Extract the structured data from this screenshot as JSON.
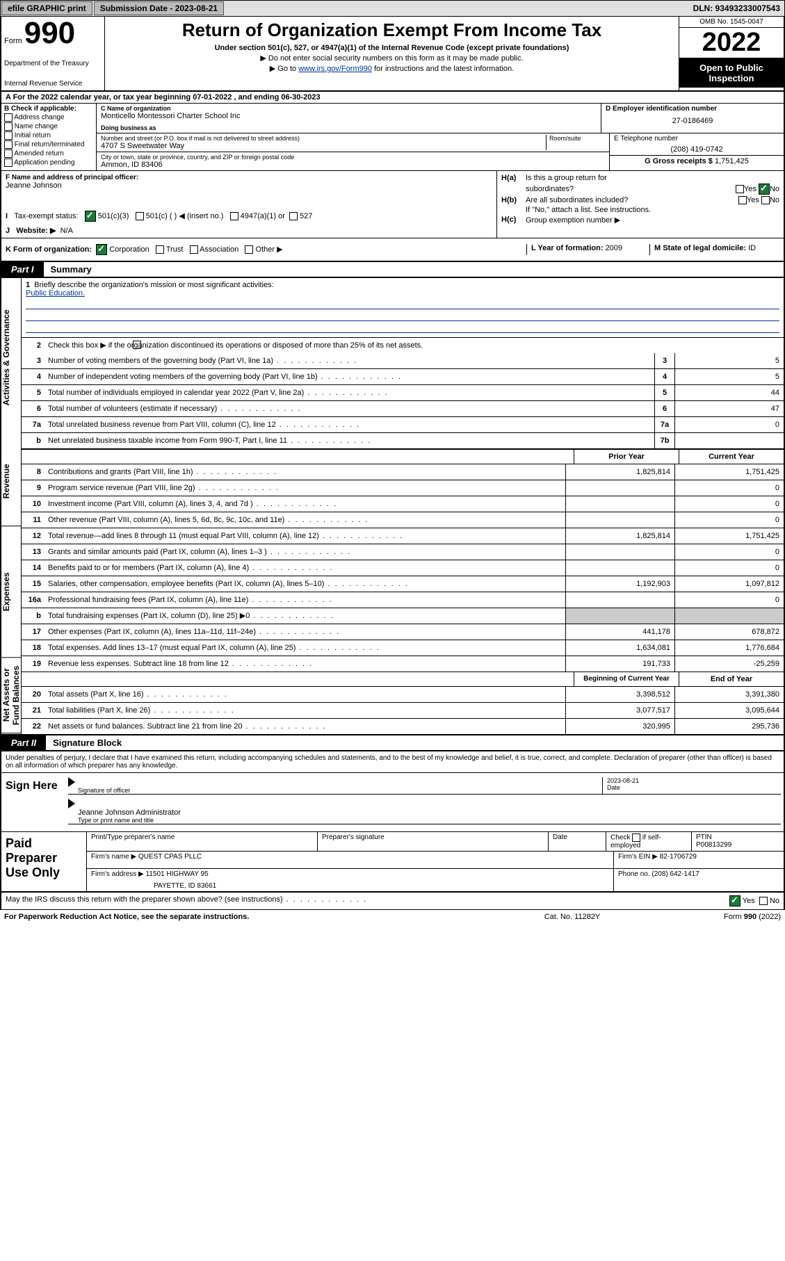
{
  "topbar": {
    "efile": "efile GRAPHIC print",
    "sub_lbl": "Submission Date - 2023-08-21",
    "dln": "DLN: 93493233007543"
  },
  "header": {
    "form_lbl": "Form",
    "form_no": "990",
    "dept": "Department of the Treasury",
    "irs": "Internal Revenue Service",
    "title": "Return of Organization Exempt From Income Tax",
    "sub1": "Under section 501(c), 527, or 4947(a)(1) of the Internal Revenue Code (except private foundations)",
    "sub2": "▶ Do not enter social security numbers on this form as it may be made public.",
    "sub3a": "▶ Go to ",
    "sub3link": "www.irs.gov/Form990",
    "sub3b": " for instructions and the latest information.",
    "omb": "OMB No. 1545-0047",
    "year": "2022",
    "openpub": "Open to Public Inspection"
  },
  "a_row": "A For the 2022 calendar year, or tax year beginning 07-01-2022    , and ending 06-30-2023",
  "b": {
    "hdr": "B Check if applicable:",
    "items": [
      "Address change",
      "Name change",
      "Initial return",
      "Final return/terminated",
      "Amended return",
      "Application pending"
    ]
  },
  "c": {
    "name_lbl": "C Name of organization",
    "name": "Monticello Montessori Charter School Inc",
    "dba_lbl": "Doing business as",
    "street_lbl": "Number and street (or P.O. box if mail is not delivered to street address)",
    "street": "4707 S Sweetwater Way",
    "room_lbl": "Room/suite",
    "city_lbl": "City or town, state or province, country, and ZIP or foreign postal code",
    "city": "Ammon, ID  83406"
  },
  "d": {
    "lbl": "D Employer identification number",
    "val": "27-0186469"
  },
  "e": {
    "tel_lbl": "E Telephone number",
    "tel": "(208) 419-0742",
    "gross_lbl": "G Gross receipts $ ",
    "gross": "1,751,425"
  },
  "f": {
    "lbl": "F  Name and address of principal officer:",
    "val": "Jeanne Johnson"
  },
  "h": {
    "a1": "Is this a group return for",
    "a2": "subordinates?",
    "b1": "Are all subordinates included?",
    "b2": "If \"No,\" attach a list. See instructions.",
    "c": "Group exemption number ▶"
  },
  "i": {
    "lbl": "Tax-exempt status:",
    "o1": "501(c)(3)",
    "o2": "501(c) (  ) ◀ (insert no.)",
    "o3": "4947(a)(1) or",
    "o4": "527"
  },
  "j": {
    "lbl": "Website: ▶",
    "val": "N/A"
  },
  "k": {
    "lbl": "K Form of organization:",
    "o1": "Corporation",
    "o2": "Trust",
    "o3": "Association",
    "o4": "Other ▶"
  },
  "l": {
    "lbl": "L Year of formation: ",
    "val": "2009"
  },
  "m": {
    "lbl": "M State of legal domicile: ",
    "val": "ID"
  },
  "part1": {
    "tab": "Part I",
    "title": "Summary"
  },
  "side": {
    "ag": "Activities & Governance",
    "rev": "Revenue",
    "exp": "Expenses",
    "na": "Net Assets or Fund Balances"
  },
  "mission": {
    "lbl": "Briefly describe the organization's mission or most significant activities:",
    "txt": "Public Education."
  },
  "line2": "Check this box ▶        if the organization discontinued its operations or disposed of more than 25% of its net assets.",
  "lines_single": [
    {
      "no": "3",
      "txt": "Number of voting members of the governing body (Part VI, line 1a)",
      "box": "3",
      "val": "5"
    },
    {
      "no": "4",
      "txt": "Number of independent voting members of the governing body (Part VI, line 1b)",
      "box": "4",
      "val": "5"
    },
    {
      "no": "5",
      "txt": "Total number of individuals employed in calendar year 2022 (Part V, line 2a)",
      "box": "5",
      "val": "44"
    },
    {
      "no": "6",
      "txt": "Total number of volunteers (estimate if necessary)",
      "box": "6",
      "val": "47"
    },
    {
      "no": "7a",
      "txt": "Total unrelated business revenue from Part VIII, column (C), line 12",
      "box": "7a",
      "val": "0"
    },
    {
      "no": "b",
      "txt": "Net unrelated business taxable income from Form 990-T, Part I, line 11",
      "box": "7b",
      "val": ""
    }
  ],
  "col_hdr": {
    "prior": "Prior Year",
    "curr": "Current Year"
  },
  "rev_lines": [
    {
      "no": "8",
      "txt": "Contributions and grants (Part VIII, line 1h)",
      "p": "1,825,814",
      "c": "1,751,425"
    },
    {
      "no": "9",
      "txt": "Program service revenue (Part VIII, line 2g)",
      "p": "",
      "c": "0"
    },
    {
      "no": "10",
      "txt": "Investment income (Part VIII, column (A), lines 3, 4, and 7d )",
      "p": "",
      "c": "0"
    },
    {
      "no": "11",
      "txt": "Other revenue (Part VIII, column (A), lines 5, 6d, 8c, 9c, 10c, and 11e)",
      "p": "",
      "c": "0"
    },
    {
      "no": "12",
      "txt": "Total revenue—add lines 8 through 11 (must equal Part VIII, column (A), line 12)",
      "p": "1,825,814",
      "c": "1,751,425"
    }
  ],
  "exp_lines": [
    {
      "no": "13",
      "txt": "Grants and similar amounts paid (Part IX, column (A), lines 1–3 )",
      "p": "",
      "c": "0"
    },
    {
      "no": "14",
      "txt": "Benefits paid to or for members (Part IX, column (A), line 4)",
      "p": "",
      "c": "0"
    },
    {
      "no": "15",
      "txt": "Salaries, other compensation, employee benefits (Part IX, column (A), lines 5–10)",
      "p": "1,192,903",
      "c": "1,097,812"
    },
    {
      "no": "16a",
      "txt": "Professional fundraising fees (Part IX, column (A), line 11e)",
      "p": "",
      "c": "0"
    },
    {
      "no": "b",
      "txt": "Total fundraising expenses (Part IX, column (D), line 25) ▶0",
      "p": "shade",
      "c": "shade"
    },
    {
      "no": "17",
      "txt": "Other expenses (Part IX, column (A), lines 11a–11d, 11f–24e)",
      "p": "441,178",
      "c": "678,872"
    },
    {
      "no": "18",
      "txt": "Total expenses. Add lines 13–17 (must equal Part IX, column (A), line 25)",
      "p": "1,634,081",
      "c": "1,776,684"
    },
    {
      "no": "19",
      "txt": "Revenue less expenses. Subtract line 18 from line 12",
      "p": "191,733",
      "c": "-25,259"
    }
  ],
  "na_hdr": {
    "beg": "Beginning of Current Year",
    "end": "End of Year"
  },
  "na_lines": [
    {
      "no": "20",
      "txt": "Total assets (Part X, line 16)",
      "p": "3,398,512",
      "c": "3,391,380"
    },
    {
      "no": "21",
      "txt": "Total liabilities (Part X, line 26)",
      "p": "3,077,517",
      "c": "3,095,644"
    },
    {
      "no": "22",
      "txt": "Net assets or fund balances. Subtract line 21 from line 20",
      "p": "320,995",
      "c": "295,736"
    }
  ],
  "part2": {
    "tab": "Part II",
    "title": "Signature Block"
  },
  "sig": {
    "decl": "Under penalties of perjury, I declare that I have examined this return, including accompanying schedules and statements, and to the best of my knowledge and belief, it is true, correct, and complete. Declaration of preparer (other than officer) is based on all information of which preparer has any knowledge.",
    "sign_here": "Sign Here",
    "sig_lbl": "Signature of officer",
    "date_lbl": "Date",
    "date": "2023-08-21",
    "name": "Jeanne Johnson Administrator",
    "name_lbl": "Type or print name and title"
  },
  "paid": {
    "lbl": "Paid Preparer Use Only",
    "h1": "Print/Type preparer's name",
    "h2": "Preparer's signature",
    "h3": "Date",
    "h4a": "Check",
    "h4b": "if self-employed",
    "h5": "PTIN",
    "ptin": "P00813299",
    "firm_lbl": "Firm's name   ▶",
    "firm": "QUEST CPAS PLLC",
    "ein_lbl": "Firm's EIN ▶",
    "ein": "82-1706729",
    "addr_lbl": "Firm's address ▶",
    "addr1": "11501 HIGHWAY 95",
    "addr2": "PAYETTE, ID  83661",
    "phone_lbl": "Phone no.",
    "phone": "(208) 642-1417"
  },
  "foot": {
    "irs_q": "May the IRS discuss this return with the preparer shown above? (see instructions)",
    "yes": "Yes",
    "no": "No",
    "pra": "For Paperwork Reduction Act Notice, see the separate instructions.",
    "cat": "Cat. No. 11282Y",
    "form": "Form 990 (2022)"
  }
}
